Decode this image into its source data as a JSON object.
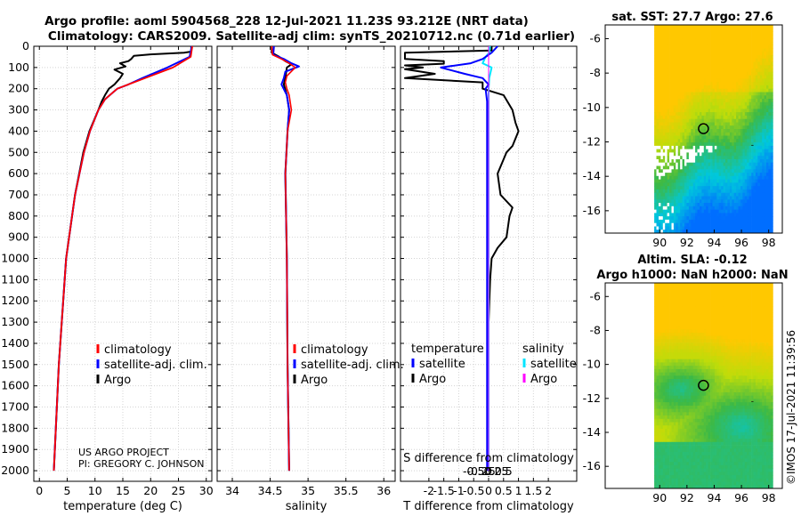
{
  "title": {
    "line1": "Argo profile: aoml 5904568_228 12-Jul-2021 11.23S 93.212E (NRT data)",
    "line2": "Climatology: CARS2009. Satellite-adj clim: synTS_20210712.nc (0.71d earlier)"
  },
  "credits": {
    "project": "US ARGO PROJECT",
    "pi": "PI: GREGORY C. JOHNSON"
  },
  "timestamp": "©IMOS 17-Jul-2021 11:39:56",
  "colors": {
    "climatology": "#ff0000",
    "satellite": "#0000ff",
    "argo": "#000000",
    "t_sat": "#0000ff",
    "s_sat": "#00e5ff",
    "s_argo": "#ff00ff"
  },
  "chart_data": [
    {
      "type": "line",
      "id": "temperature",
      "xlabel": "temperature (deg C)",
      "ylabel": "",
      "xlim": [
        -1,
        31
      ],
      "ylim": [
        2050,
        0
      ],
      "xticks": [
        "0",
        "5",
        "10",
        "15",
        "20",
        "25",
        "30"
      ],
      "yticks": [
        "0",
        "100",
        "200",
        "300",
        "400",
        "500",
        "600",
        "700",
        "800",
        "900",
        "1000",
        "1100",
        "1200",
        "1300",
        "1400",
        "1500",
        "1600",
        "1700",
        "1800",
        "1900",
        "2000"
      ],
      "legend": {
        "position": "lower-center",
        "entries": [
          "climatology",
          "satellite-adj. clim.",
          "Argo"
        ]
      },
      "series": [
        {
          "name": "climatology",
          "depth": [
            0,
            50,
            100,
            150,
            180,
            200,
            250,
            300,
            400,
            500,
            700,
            1000,
            1500,
            2000
          ],
          "values": [
            27.5,
            27.2,
            24,
            19,
            16,
            14,
            11.8,
            10.6,
            9.1,
            8,
            6.4,
            4.8,
            3.5,
            2.6
          ]
        },
        {
          "name": "satellite-adj. clim.",
          "depth": [
            0,
            50,
            100,
            150,
            180,
            200,
            250,
            300,
            400,
            500,
            700,
            1000,
            1500,
            2000
          ],
          "values": [
            27.4,
            27,
            23,
            18.5,
            16,
            14,
            11.8,
            10.6,
            9.1,
            8,
            6.4,
            4.8,
            3.5,
            2.6
          ]
        },
        {
          "name": "Argo",
          "depth": [
            0,
            25,
            30,
            38,
            45,
            60,
            70,
            80,
            95,
            110,
            130,
            150,
            180,
            200,
            230,
            260,
            300,
            400,
            500,
            700,
            1000,
            1500,
            2000
          ],
          "values": [
            27.3,
            27.3,
            26,
            20,
            17,
            16.5,
            16,
            14.5,
            15.5,
            13.5,
            15,
            14.5,
            13.5,
            12.5,
            11.8,
            11.2,
            10.6,
            9,
            7.9,
            6.4,
            4.8,
            3.5,
            2.6
          ]
        }
      ]
    },
    {
      "type": "line",
      "id": "salinity",
      "xlabel": "salinity",
      "xlim": [
        33.8,
        36.15
      ],
      "ylim": [
        2050,
        0
      ],
      "xticks": [
        "34",
        "34.5",
        "35",
        "35.5",
        "36"
      ],
      "legend": {
        "position": "lower-center",
        "entries": [
          "climatology",
          "satellite-adj. clim.",
          "Argo"
        ]
      },
      "series": [
        {
          "name": "climatology",
          "depth": [
            0,
            40,
            60,
            80,
            100,
            140,
            170,
            200,
            230,
            300,
            400,
            600,
            1000,
            1500,
            2000
          ],
          "values": [
            34.52,
            34.53,
            34.65,
            34.75,
            34.83,
            34.72,
            34.7,
            34.72,
            34.75,
            34.78,
            34.73,
            34.7,
            34.72,
            34.73,
            34.75
          ]
        },
        {
          "name": "satellite-adj. clim.",
          "depth": [
            0,
            40,
            60,
            80,
            95,
            120,
            150,
            180,
            230,
            300,
            400,
            600,
            1000,
            1500,
            2000
          ],
          "values": [
            34.55,
            34.54,
            34.68,
            34.78,
            34.88,
            34.7,
            34.68,
            34.65,
            34.72,
            34.75,
            34.73,
            34.7,
            34.72,
            34.73,
            34.75
          ]
        },
        {
          "name": "Argo",
          "depth": [
            0,
            30,
            50,
            70,
            85,
            100,
            150,
            180,
            230,
            300,
            400,
            600,
            1000,
            1500,
            2000
          ],
          "values": [
            34.52,
            34.52,
            34.62,
            34.7,
            34.78,
            34.72,
            34.7,
            34.68,
            34.72,
            34.75,
            34.73,
            34.7,
            34.72,
            34.73,
            34.75
          ]
        }
      ]
    },
    {
      "type": "line",
      "id": "difference",
      "xlabel": "T difference from climatology",
      "xlabel_top": "S difference from climatology",
      "xlim": [
        -2.95,
        2.95
      ],
      "ylim": [
        2050,
        0
      ],
      "xticks": [
        "-2",
        "-1.5",
        "-1",
        "-0.5",
        "0",
        "0.5",
        "1",
        "1.5",
        "2"
      ],
      "xticks_s": [
        "-0.5",
        "-0.25",
        "0",
        "0.25",
        "0.5"
      ],
      "legend": {
        "position": "lower-center",
        "title_t": "temperature",
        "title_s": "salinity",
        "entries_t": [
          "satellite",
          "Argo"
        ],
        "entries_s": [
          "satellite",
          "Argo"
        ]
      },
      "series": [
        {
          "name": "T satellite",
          "depth": [
            0,
            30,
            60,
            80,
            100,
            130,
            150,
            180,
            200,
            260,
            400,
            700,
            1000,
            1500,
            2000
          ],
          "values": [
            0.3,
            0.1,
            -0.2,
            -0.6,
            -1.6,
            -0.8,
            -0.2,
            0,
            -0.1,
            -0.05,
            -0.05,
            -0.05,
            -0.05,
            -0.05,
            -0.05
          ]
        },
        {
          "name": "T Argo",
          "depth": [
            0,
            20,
            30,
            60,
            70,
            82,
            90,
            100,
            108,
            130,
            150,
            170,
            200,
            230,
            300,
            360,
            400,
            470,
            500,
            600,
            700,
            760,
            800,
            900,
            950,
            1000,
            1100,
            1300,
            1500,
            1700,
            1800,
            2000
          ],
          "values": [
            0.1,
            0.1,
            -2.8,
            -2.8,
            -1.5,
            -1.5,
            -2.8,
            -2.2,
            -2.8,
            -1.8,
            -2.8,
            -0.2,
            -0.2,
            0.5,
            0.8,
            0.9,
            1.0,
            0.8,
            0.6,
            0.3,
            0.4,
            0.8,
            0.7,
            0.6,
            0.3,
            0.1,
            0.05,
            0,
            0,
            0,
            0,
            -0.05
          ]
        },
        {
          "name": "S satellite",
          "depth": [
            0,
            30,
            50,
            80,
            100,
            150,
            200,
            300,
            500,
            1000,
            2000
          ],
          "values": [
            0.05,
            0.02,
            -0.1,
            -0.2,
            0.1,
            0.02,
            0,
            0,
            0,
            0,
            0
          ]
        },
        {
          "name": "S Argo",
          "depth": [
            0,
            2000
          ],
          "values": [
            0,
            0
          ]
        }
      ]
    },
    {
      "type": "heatmap",
      "id": "sst_map",
      "title": "sat. SST: 27.7 Argo: 27.6",
      "xticks": [
        "90",
        "92",
        "94",
        "96",
        "98"
      ],
      "yticks": [
        "-6",
        "-8",
        "-10",
        "-12",
        "-14",
        "-16"
      ],
      "xlim": [
        86,
        99
      ],
      "ylim": [
        -17.3,
        -5.2
      ],
      "marker": {
        "lon": 93.212,
        "lat": -11.23
      }
    },
    {
      "type": "heatmap",
      "id": "sla_map",
      "title": "Altim. SLA: -0.12",
      "subtitle": "Argo h1000: NaN h2000: NaN",
      "xticks": [
        "90",
        "92",
        "94",
        "96",
        "98"
      ],
      "yticks": [
        "-6",
        "-8",
        "-10",
        "-12",
        "-14",
        "-16"
      ],
      "xlim": [
        86,
        99
      ],
      "ylim": [
        -17.3,
        -5.2
      ],
      "marker": {
        "lon": 93.212,
        "lat": -11.23
      }
    }
  ]
}
